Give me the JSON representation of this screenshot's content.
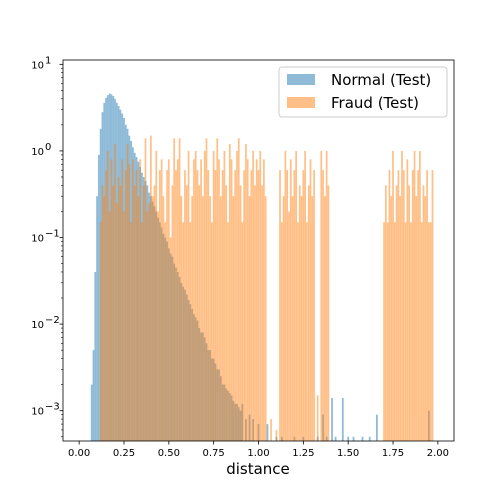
{
  "chart_data": {
    "type": "histogram",
    "title": "",
    "xlabel": "distance",
    "ylabel": "",
    "xlim": [
      -0.09,
      2.09
    ],
    "ylim_log10": [
      -3.35,
      1.05
    ],
    "y_scale": "log",
    "x_ticks": [
      {
        "value": 0.0,
        "label": "0.00"
      },
      {
        "value": 0.25,
        "label": "0.25"
      },
      {
        "value": 0.5,
        "label": "0.50"
      },
      {
        "value": 0.75,
        "label": "0.75"
      },
      {
        "value": 1.0,
        "label": "1.00"
      },
      {
        "value": 1.25,
        "label": "1.25"
      },
      {
        "value": 1.5,
        "label": "1.50"
      },
      {
        "value": 1.75,
        "label": "1.75"
      },
      {
        "value": 2.0,
        "label": "2.00"
      }
    ],
    "y_ticks": [
      {
        "exp": 1,
        "label": "10"
      },
      {
        "exp": 0,
        "label": "10"
      },
      {
        "exp": -1,
        "label": "10"
      },
      {
        "exp": -2,
        "label": "10"
      },
      {
        "exp": -3,
        "label": "10"
      }
    ],
    "y_tick_exponents": [
      "1",
      "0",
      "−1",
      "−2",
      "−3"
    ],
    "legend": {
      "position": "top-right",
      "entries": [
        "Normal (Test)",
        "Fraud (Test)"
      ]
    },
    "series": [
      {
        "name": "Normal (Test)",
        "color": "#1f77b4",
        "alpha": 0.5,
        "bin_width": 0.01,
        "points": [
          [
            0.07,
            0.002
          ],
          [
            0.08,
            0.005
          ],
          [
            0.09,
            0.04
          ],
          [
            0.1,
            0.3
          ],
          [
            0.11,
            0.9
          ],
          [
            0.12,
            1.8
          ],
          [
            0.13,
            2.8
          ],
          [
            0.14,
            3.6
          ],
          [
            0.15,
            4.1
          ],
          [
            0.16,
            4.4
          ],
          [
            0.17,
            4.6
          ],
          [
            0.18,
            4.5
          ],
          [
            0.19,
            4.3
          ],
          [
            0.2,
            4.0
          ],
          [
            0.21,
            3.6
          ],
          [
            0.22,
            3.3
          ],
          [
            0.23,
            3.0
          ],
          [
            0.24,
            2.7
          ],
          [
            0.25,
            2.4
          ],
          [
            0.26,
            2.0
          ],
          [
            0.27,
            1.8
          ],
          [
            0.28,
            1.5
          ],
          [
            0.29,
            1.3
          ],
          [
            0.3,
            1.1
          ],
          [
            0.31,
            0.95
          ],
          [
            0.32,
            0.85
          ],
          [
            0.33,
            0.75
          ],
          [
            0.34,
            0.65
          ],
          [
            0.35,
            0.56
          ],
          [
            0.36,
            0.5
          ],
          [
            0.37,
            0.45
          ],
          [
            0.38,
            0.4
          ],
          [
            0.39,
            0.33
          ],
          [
            0.4,
            0.3
          ],
          [
            0.41,
            0.26
          ],
          [
            0.42,
            0.23
          ],
          [
            0.43,
            0.2
          ],
          [
            0.44,
            0.17
          ],
          [
            0.45,
            0.15
          ],
          [
            0.46,
            0.13
          ],
          [
            0.47,
            0.11
          ],
          [
            0.48,
            0.1
          ],
          [
            0.49,
            0.09
          ],
          [
            0.5,
            0.075
          ],
          [
            0.51,
            0.065
          ],
          [
            0.52,
            0.06
          ],
          [
            0.53,
            0.05
          ],
          [
            0.54,
            0.045
          ],
          [
            0.55,
            0.04
          ],
          [
            0.56,
            0.035
          ],
          [
            0.57,
            0.03
          ],
          [
            0.58,
            0.027
          ],
          [
            0.59,
            0.025
          ],
          [
            0.6,
            0.022
          ],
          [
            0.61,
            0.019
          ],
          [
            0.62,
            0.017
          ],
          [
            0.63,
            0.015
          ],
          [
            0.64,
            0.013
          ],
          [
            0.65,
            0.012
          ],
          [
            0.66,
            0.011
          ],
          [
            0.67,
            0.009
          ],
          [
            0.68,
            0.008
          ],
          [
            0.69,
            0.008
          ],
          [
            0.7,
            0.007
          ],
          [
            0.71,
            0.006
          ],
          [
            0.72,
            0.005
          ],
          [
            0.73,
            0.005
          ],
          [
            0.74,
            0.004
          ],
          [
            0.75,
            0.004
          ],
          [
            0.76,
            0.0035
          ],
          [
            0.77,
            0.003
          ],
          [
            0.78,
            0.003
          ],
          [
            0.79,
            0.0025
          ],
          [
            0.8,
            0.002
          ],
          [
            0.81,
            0.002
          ],
          [
            0.82,
            0.0018
          ],
          [
            0.83,
            0.0017
          ],
          [
            0.84,
            0.0016
          ],
          [
            0.85,
            0.0015
          ],
          [
            0.86,
            0.0013
          ],
          [
            0.87,
            0.0012
          ],
          [
            0.88,
            0.0012
          ],
          [
            0.89,
            0.0011
          ],
          [
            0.9,
            0.001
          ],
          [
            0.91,
            0.0012
          ],
          [
            0.93,
            0.0008
          ],
          [
            0.95,
            0.0009
          ],
          [
            0.97,
            0.0008
          ],
          [
            1.0,
            0.0007
          ],
          [
            1.05,
            0.0007
          ],
          [
            1.1,
            0.0005
          ],
          [
            1.13,
            0.0005
          ],
          [
            1.2,
            0.0005
          ],
          [
            1.25,
            0.0005
          ],
          [
            1.33,
            0.0005
          ],
          [
            1.36,
            0.0009
          ],
          [
            1.38,
            0.0005
          ],
          [
            1.41,
            0.0014
          ],
          [
            1.43,
            0.0005
          ],
          [
            1.47,
            0.0014
          ],
          [
            1.5,
            0.0005
          ],
          [
            1.53,
            0.0005
          ],
          [
            1.58,
            0.0005
          ],
          [
            1.62,
            0.0005
          ],
          [
            1.66,
            0.0009
          ],
          [
            1.95,
            0.001
          ]
        ]
      },
      {
        "name": "Fraud (Test)",
        "color": "#ff7f0e",
        "alpha": 0.5,
        "bin_width": 0.0095,
        "points": [
          [
            0.12,
            0.15
          ],
          [
            0.13,
            0.4
          ],
          [
            0.14,
            0.3
          ],
          [
            0.15,
            0.6
          ],
          [
            0.16,
            1.0
          ],
          [
            0.17,
            0.2
          ],
          [
            0.18,
            0.8
          ],
          [
            0.19,
            0.4
          ],
          [
            0.2,
            1.2
          ],
          [
            0.21,
            0.25
          ],
          [
            0.22,
            0.5
          ],
          [
            0.23,
            0.4
          ],
          [
            0.24,
            0.8
          ],
          [
            0.25,
            0.2
          ],
          [
            0.26,
            0.6
          ],
          [
            0.27,
            1.2
          ],
          [
            0.28,
            0.7
          ],
          [
            0.29,
            0.15
          ],
          [
            0.3,
            0.8
          ],
          [
            0.31,
            0.4
          ],
          [
            0.32,
            0.6
          ],
          [
            0.33,
            0.3
          ],
          [
            0.34,
            0.8
          ],
          [
            0.35,
            0.15
          ],
          [
            0.36,
            0.4
          ],
          [
            0.37,
            1.4
          ],
          [
            0.38,
            0.2
          ],
          [
            0.39,
            0.25
          ],
          [
            0.4,
            1.5
          ],
          [
            0.41,
            0.3
          ],
          [
            0.42,
            0.4
          ],
          [
            0.43,
            1.0
          ],
          [
            0.44,
            0.2
          ],
          [
            0.45,
            0.6
          ],
          [
            0.46,
            0.8
          ],
          [
            0.47,
            0.3
          ],
          [
            0.48,
            0.15
          ],
          [
            0.49,
            0.6
          ],
          [
            0.5,
            0.8
          ],
          [
            0.51,
            0.1
          ],
          [
            0.52,
            0.4
          ],
          [
            0.53,
            1.4
          ],
          [
            0.54,
            0.6
          ],
          [
            0.55,
            0.8
          ],
          [
            0.56,
            1.4
          ],
          [
            0.57,
            0.3
          ],
          [
            0.58,
            0.15
          ],
          [
            0.59,
            0.6
          ],
          [
            0.6,
            0.4
          ],
          [
            0.61,
            1.0
          ],
          [
            0.62,
            0.15
          ],
          [
            0.63,
            0.3
          ],
          [
            0.64,
            0.8
          ],
          [
            0.65,
            1.0
          ],
          [
            0.66,
            0.6
          ],
          [
            0.67,
            0.4
          ],
          [
            0.68,
            0.8
          ],
          [
            0.69,
            0.3
          ],
          [
            0.7,
            1.0
          ],
          [
            0.71,
            1.4
          ],
          [
            0.72,
            0.6
          ],
          [
            0.73,
            0.3
          ],
          [
            0.74,
            0.15
          ],
          [
            0.75,
            1.0
          ],
          [
            0.76,
            0.6
          ],
          [
            0.77,
            1.4
          ],
          [
            0.78,
            0.8
          ],
          [
            0.79,
            0.3
          ],
          [
            0.8,
            0.6
          ],
          [
            0.81,
            1.0
          ],
          [
            0.82,
            0.4
          ],
          [
            0.83,
            0.15
          ],
          [
            0.84,
            1.2
          ],
          [
            0.85,
            0.8
          ],
          [
            0.86,
            0.3
          ],
          [
            0.87,
            0.6
          ],
          [
            0.88,
            1.0
          ],
          [
            0.89,
            1.4
          ],
          [
            0.9,
            0.4
          ],
          [
            0.91,
            0.15
          ],
          [
            0.92,
            0.6
          ],
          [
            0.93,
            1.2
          ],
          [
            0.94,
            0.8
          ],
          [
            0.95,
            0.3
          ],
          [
            0.96,
            0.6
          ],
          [
            0.97,
            1.0
          ],
          [
            0.98,
            0.4
          ],
          [
            0.99,
            0.8
          ],
          [
            1.0,
            0.6
          ],
          [
            1.01,
            1.0
          ],
          [
            1.02,
            0.4
          ],
          [
            1.03,
            0.8
          ],
          [
            1.04,
            0.3
          ],
          [
            1.07,
            0.0008
          ],
          [
            1.1,
            0.0006
          ],
          [
            1.12,
            0.6
          ],
          [
            1.13,
            0.15
          ],
          [
            1.14,
            0.3
          ],
          [
            1.15,
            1.0
          ],
          [
            1.16,
            0.6
          ],
          [
            1.17,
            0.2
          ],
          [
            1.18,
            0.8
          ],
          [
            1.19,
            0.3
          ],
          [
            1.2,
            0.6
          ],
          [
            1.21,
            1.0
          ],
          [
            1.22,
            0.15
          ],
          [
            1.23,
            0.4
          ],
          [
            1.24,
            0.3
          ],
          [
            1.25,
            0.6
          ],
          [
            1.26,
            1.0
          ],
          [
            1.27,
            0.15
          ],
          [
            1.28,
            0.4
          ],
          [
            1.29,
            0.8
          ],
          [
            1.3,
            0.3
          ],
          [
            1.31,
            0.6
          ],
          [
            1.33,
            0.0015
          ],
          [
            1.35,
            1.0
          ],
          [
            1.36,
            0.6
          ],
          [
            1.37,
            0.3
          ],
          [
            1.38,
            1.0
          ],
          [
            1.39,
            0.4
          ],
          [
            1.7,
            0.15
          ],
          [
            1.71,
            0.4
          ],
          [
            1.72,
            0.15
          ],
          [
            1.73,
            0.6
          ],
          [
            1.74,
            0.3
          ],
          [
            1.75,
            1.0
          ],
          [
            1.76,
            0.15
          ],
          [
            1.77,
            0.4
          ],
          [
            1.78,
            0.6
          ],
          [
            1.79,
            0.3
          ],
          [
            1.8,
            1.0
          ],
          [
            1.81,
            0.6
          ],
          [
            1.82,
            0.15
          ],
          [
            1.83,
            0.8
          ],
          [
            1.84,
            0.4
          ],
          [
            1.85,
            0.15
          ],
          [
            1.86,
            0.6
          ],
          [
            1.87,
            1.0
          ],
          [
            1.88,
            0.3
          ],
          [
            1.89,
            0.6
          ],
          [
            1.9,
            1.0
          ],
          [
            1.91,
            0.15
          ],
          [
            1.92,
            0.4
          ],
          [
            1.93,
            0.3
          ],
          [
            1.94,
            0.6
          ],
          [
            1.95,
            0.15
          ],
          [
            1.96,
            0.15
          ],
          [
            1.97,
            0.6
          ]
        ]
      }
    ]
  }
}
